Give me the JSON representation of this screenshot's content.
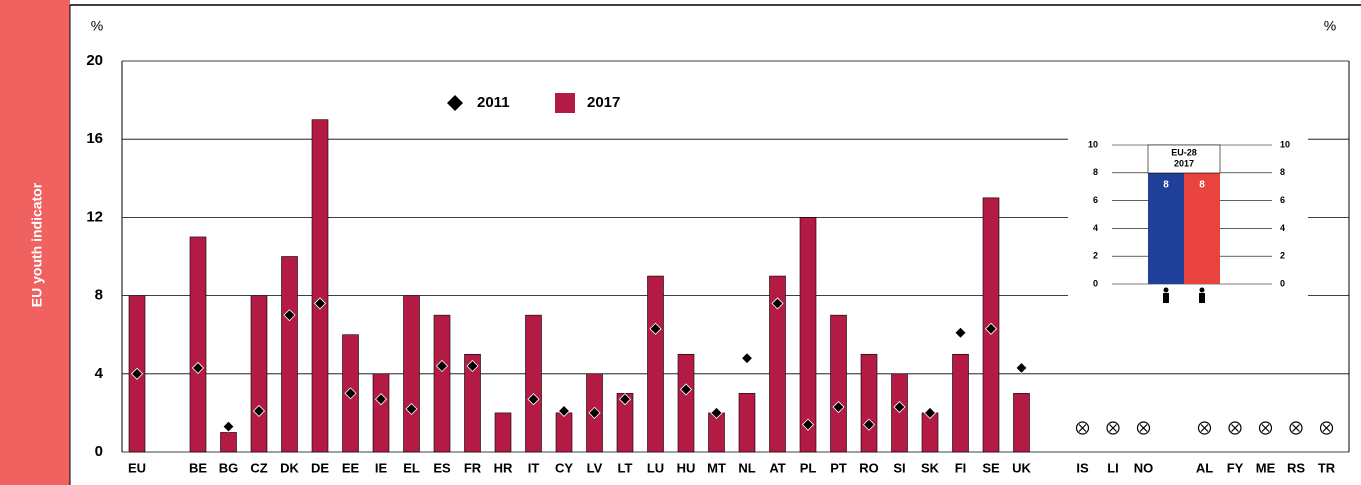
{
  "sidebar": "EU youth indicator",
  "chart_data": [
    {
      "type": "bar",
      "y_unit": "%",
      "categories": [
        "EU",
        null,
        "BE",
        "BG",
        "CZ",
        "DK",
        "DE",
        "EE",
        "IE",
        "EL",
        "ES",
        "FR",
        "HR",
        "IT",
        "CY",
        "LV",
        "LT",
        "LU",
        "HU",
        "MT",
        "NL",
        "AT",
        "PL",
        "PT",
        "RO",
        "SI",
        "SK",
        "FI",
        "SE",
        "UK",
        null,
        "IS",
        "LI",
        "NO",
        null,
        "AL",
        "FY",
        "ME",
        "RS",
        "TR"
      ],
      "series": [
        {
          "name": "2011",
          "color": "#000000",
          "marker": "diamond",
          "values": [
            4,
            null,
            4.3,
            1.3,
            2.1,
            7,
            7.6,
            3,
            2.7,
            2.2,
            4.4,
            4.4,
            null,
            2.7,
            2.1,
            2,
            2.7,
            6.3,
            3.2,
            2,
            4.8,
            7.6,
            1.4,
            2.3,
            1.4,
            2.3,
            2,
            6.1,
            6.3,
            4.3,
            null,
            null,
            null,
            null,
            null,
            null,
            null,
            null,
            null,
            null
          ]
        },
        {
          "name": "2017",
          "color": "#b31b45",
          "values": [
            8,
            null,
            11,
            1,
            8,
            10,
            17,
            6,
            4,
            8,
            7,
            5,
            2,
            7,
            2,
            4,
            3,
            9,
            5,
            2,
            3,
            9,
            12,
            7,
            5,
            4,
            2,
            5,
            13,
            3,
            null,
            null,
            null,
            null,
            null,
            null,
            null,
            null,
            null,
            null
          ]
        }
      ],
      "ylim": [
        0,
        20
      ],
      "yticks": [
        0,
        4,
        8,
        12,
        16,
        20
      ],
      "grid": true
    },
    {
      "type": "bar",
      "title": "EU-28",
      "subtitle": "2017",
      "categories": [
        null,
        null
      ],
      "values": [
        8,
        8
      ],
      "colors": [
        "#1f3f99",
        "#e8433e"
      ],
      "ylim": [
        0,
        10
      ],
      "yticks": [
        0,
        2,
        4,
        6,
        8,
        10
      ],
      "grid": true
    }
  ]
}
